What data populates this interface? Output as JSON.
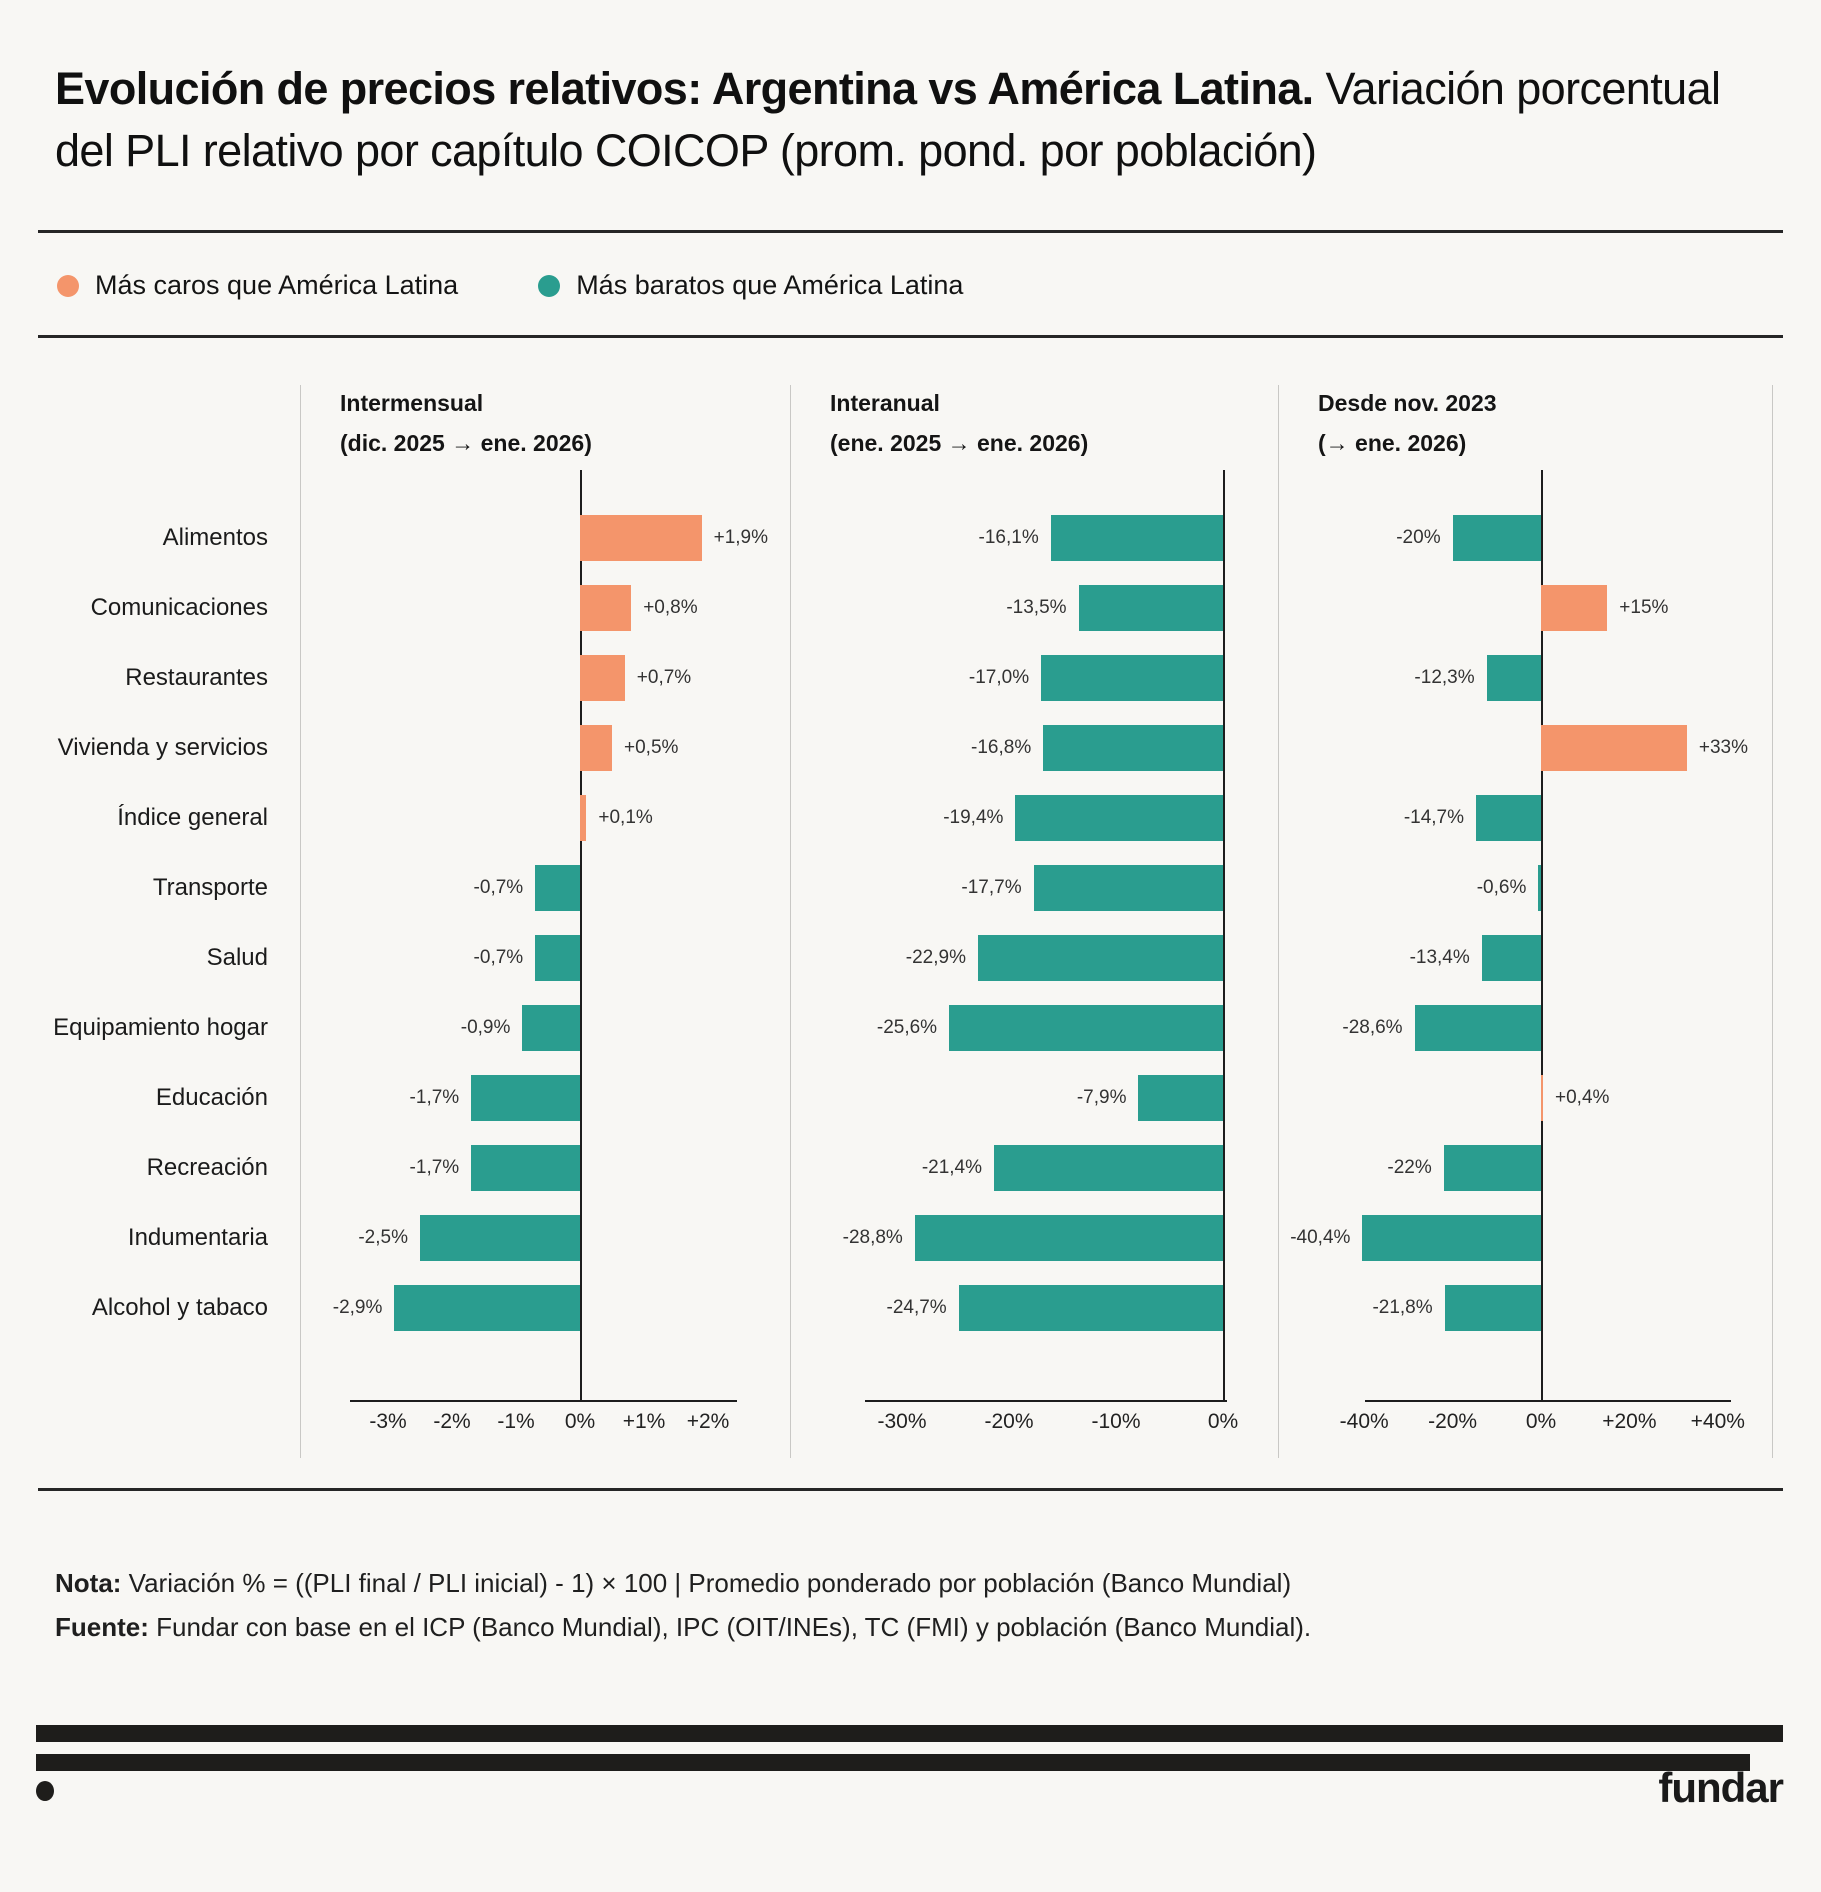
{
  "title": {
    "bold": "Evolución de precios relativos: Argentina vs América Latina.",
    "regular": " Variación porcentual del PLI relativo por capítulo COICOP (prom. pond. por población)"
  },
  "legend": {
    "items": [
      {
        "label": "Más caros que América Latina",
        "color": "#F4956B"
      },
      {
        "label": "Más baratos que América Latina",
        "color": "#2A9D8F"
      }
    ]
  },
  "colors": {
    "positive": "#F4956B",
    "negative": "#2A9D8F",
    "background": "#F8F7F4",
    "axis_line": "#1D1D1D",
    "panel_divider": "#C9C8C5"
  },
  "chart_data": {
    "type": "bar",
    "orientation": "horizontal",
    "categories": [
      "Alimentos",
      "Comunicaciones",
      "Restaurantes",
      "Vivienda y servicios",
      "Índice general",
      "Transporte",
      "Salud",
      "Equipamiento hogar",
      "Educación",
      "Recreación",
      "Indumentaria",
      "Alcohol y tabaco"
    ],
    "panels": [
      {
        "title": "Intermensual",
        "subtitle": "(dic. 2025 → ene. 2026)",
        "values": [
          1.9,
          0.8,
          0.7,
          0.5,
          0.1,
          -0.7,
          -0.7,
          -0.9,
          -1.7,
          -1.7,
          -2.5,
          -2.9
        ],
        "value_labels": [
          "+1,9%",
          "+0,8%",
          "+0,7%",
          "+0,5%",
          "+0,1%",
          "-0,7%",
          "-0,7%",
          "-0,9%",
          "-1,7%",
          "-1,7%",
          "-2,5%",
          "-2,9%"
        ],
        "ticks": [
          -3,
          -2,
          -1,
          0,
          1,
          2
        ],
        "tick_labels": [
          "-3%",
          "-2%",
          "-1%",
          "0%",
          "+1%",
          "+2%"
        ],
        "xlim": [
          -3.6,
          2.45
        ]
      },
      {
        "title": "Interanual",
        "subtitle": "(ene. 2025 → ene. 2026)",
        "values": [
          -16.1,
          -13.5,
          -17.0,
          -16.8,
          -19.4,
          -17.7,
          -22.9,
          -25.6,
          -7.9,
          -21.4,
          -28.8,
          -24.7
        ],
        "value_labels": [
          "-16,1%",
          "-13,5%",
          "-17,0%",
          "-16,8%",
          "-19,4%",
          "-17,7%",
          "-22,9%",
          "-25,6%",
          "-7,9%",
          "-21,4%",
          "-28,8%",
          "-24,7%"
        ],
        "ticks": [
          -30,
          -20,
          -10,
          0
        ],
        "tick_labels": [
          "-30%",
          "-20%",
          "-10%",
          "0%"
        ],
        "xlim": [
          -33.5,
          0.4
        ]
      },
      {
        "title": "Desde nov. 2023",
        "subtitle": "(→ ene. 2026)",
        "values": [
          -20,
          15,
          -12.3,
          33,
          -14.7,
          -0.6,
          -13.4,
          -28.6,
          0.4,
          -22,
          -40.4,
          -21.8
        ],
        "value_labels": [
          "-20%",
          "+15%",
          "-12,3%",
          "+33%",
          "-14,7%",
          "-0,6%",
          "-13,4%",
          "-28,6%",
          "+0,4%",
          "-22%",
          "-40,4%",
          "-21,8%"
        ],
        "ticks": [
          -40,
          -20,
          0,
          20,
          40
        ],
        "tick_labels": [
          "-40%",
          "-20%",
          "0%",
          "+20%",
          "+40%"
        ],
        "xlim": [
          -44,
          43
        ]
      }
    ],
    "legend_position": "top",
    "grid": false
  },
  "footer": {
    "note_label": "Nota:",
    "note_text": " Variación % = ((PLI final / PLI inicial) - 1) × 100 | Promedio ponderado por población (Banco Mundial)",
    "source_label": "Fuente:",
    "source_text": " Fundar con base en el ICP (Banco Mundial), IPC (OIT/INEs), TC (FMI) y población (Banco Mundial).",
    "logo": "fundar"
  }
}
